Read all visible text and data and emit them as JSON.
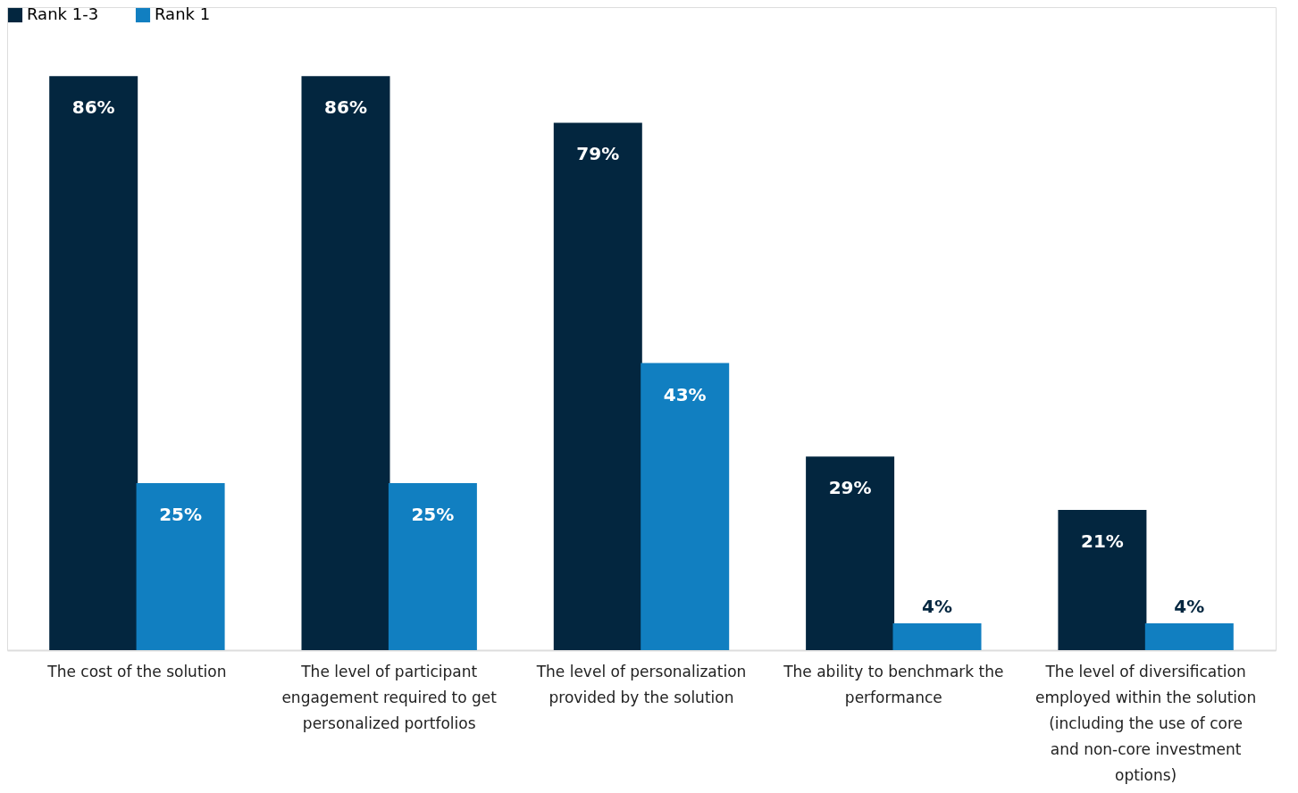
{
  "chart_data": {
    "type": "bar",
    "categories": [
      "The cost of the solution",
      "The level of participant engagement required to get personalized portfolios",
      "The level of personalization provided by the solution",
      "The ability to benchmark the performance",
      "The level of diversification employed within the solution (including the use of core and non-core investment options)"
    ],
    "series": [
      {
        "name": "Rank 1-3",
        "color": "#03263f",
        "values": [
          86,
          86,
          79,
          29,
          21
        ],
        "value_labels": [
          "86%",
          "86%",
          "79%",
          "29%",
          "21%"
        ]
      },
      {
        "name": "Rank 1",
        "color": "#117fc1",
        "values": [
          25,
          25,
          43,
          4,
          4
        ],
        "value_labels": [
          "25%",
          "25%",
          "43%",
          "4%",
          "4%"
        ]
      }
    ],
    "legend": "top left",
    "tick_labels": "x",
    "grid": false
  }
}
